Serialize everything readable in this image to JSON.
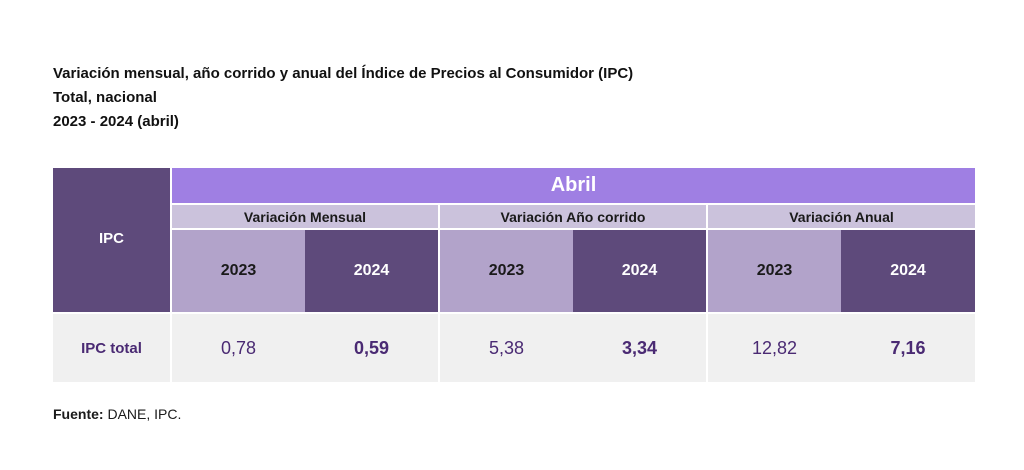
{
  "title": {
    "line1": "Variación mensual, año corrido y anual del Índice de Precios al Consumidor (IPC)",
    "line2": "Total, nacional",
    "line3": "2023 - 2024 (abril)"
  },
  "table": {
    "row_header_label": "IPC",
    "month_label": "Abril",
    "groups": [
      {
        "label": "Variación Mensual",
        "years": [
          "2023",
          "2024"
        ]
      },
      {
        "label": "Variación Año corrido",
        "years": [
          "2023",
          "2024"
        ]
      },
      {
        "label": "Variación Anual",
        "years": [
          "2023",
          "2024"
        ]
      }
    ],
    "rows": [
      {
        "label": "IPC total",
        "values": [
          "0,78",
          "0,59",
          "5,38",
          "3,34",
          "12,82",
          "7,16"
        ]
      }
    ]
  },
  "source": {
    "label": "Fuente:",
    "text": "DANE, IPC."
  },
  "colors": {
    "dark_purple": "#5e4a7b",
    "accent_purple": "#9f7fe3",
    "light_purple": "#b2a3ca",
    "group_header": "#cbc2dc",
    "row_bg": "#f0f0f0",
    "value_text": "#4a2a73"
  }
}
